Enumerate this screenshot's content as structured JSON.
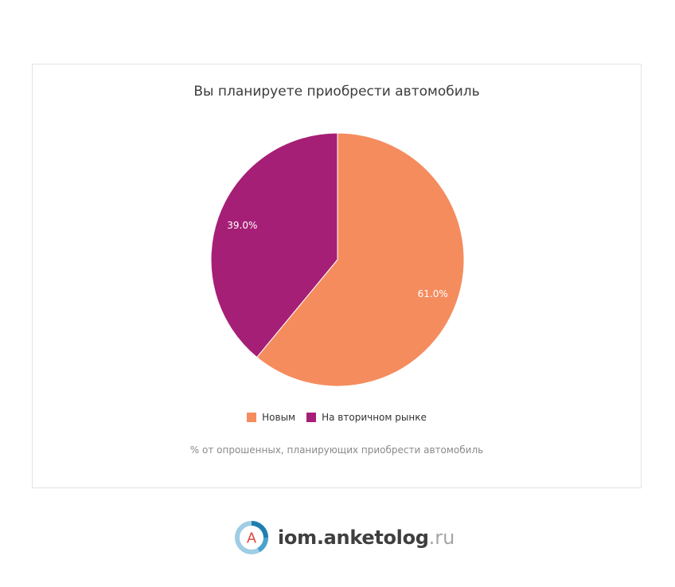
{
  "chart_data": {
    "type": "pie",
    "title": "Вы планируете приобрести автомобиль",
    "caption": "% от опрошенных, планирующих приобрести автомобиль",
    "slices": [
      {
        "label": "Новым",
        "value": 61.0,
        "value_label": "61.0%",
        "color": "#F58C5E"
      },
      {
        "label": "На вторичном рынке",
        "value": 39.0,
        "value_label": "39.0%",
        "color": "#A61F76"
      }
    ],
    "legend_position": "bottom"
  },
  "brand": {
    "logo_letter": "A",
    "name": "iom.anketolog",
    "tld": ".ru"
  }
}
